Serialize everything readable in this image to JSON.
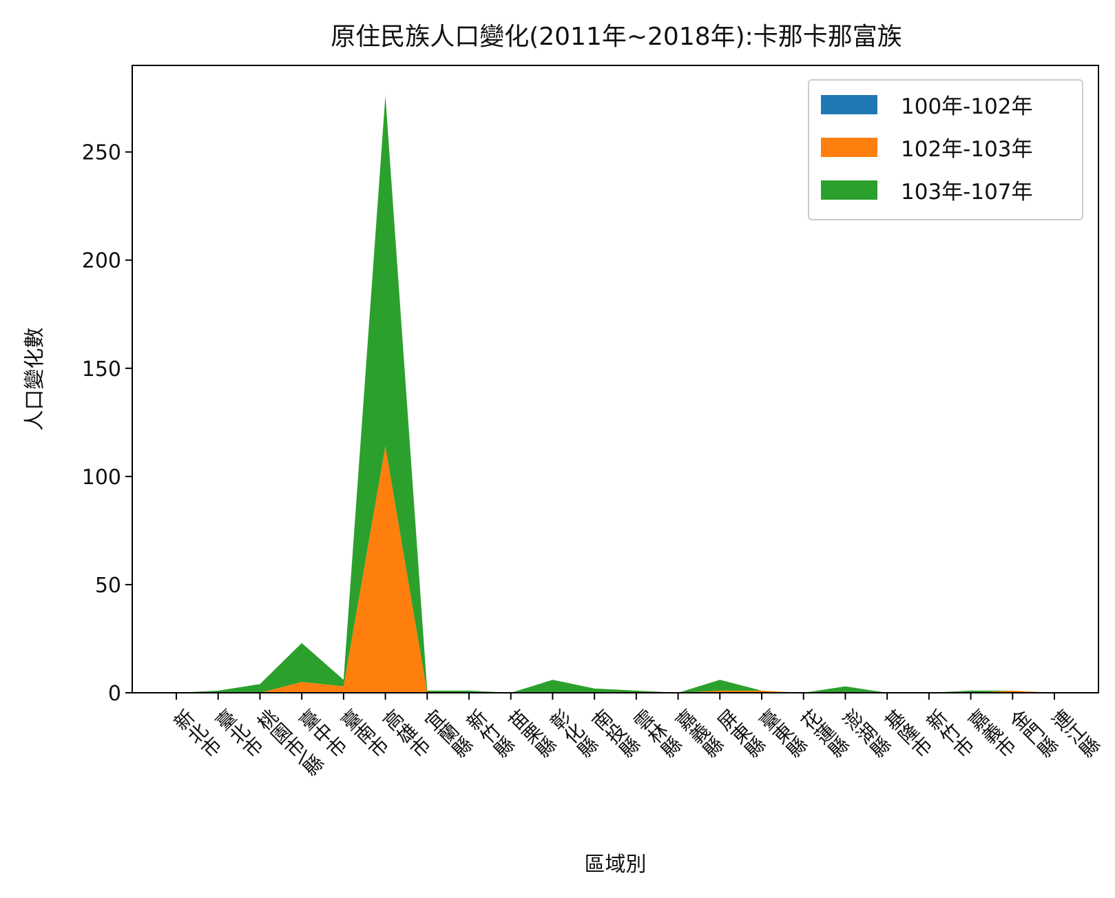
{
  "chart_data": {
    "type": "area",
    "stacked": true,
    "title": "原住民族人口變化(2011年~2018年):卡那卡那富族",
    "xlabel": "區域別",
    "ylabel": "人口變化數",
    "categories": [
      "新北市",
      "臺北市",
      "桃園市\\縣",
      "臺中市",
      "臺南市",
      "高雄市",
      "宜蘭縣",
      "新竹縣",
      "苗栗縣",
      "彰化縣",
      "南投縣",
      "雲林縣",
      "嘉義縣",
      "屏東縣",
      "臺東縣",
      "花蓮縣",
      "澎湖縣",
      "基隆市",
      "新竹市",
      "嘉義市",
      "金門縣",
      "連江縣"
    ],
    "series": [
      {
        "name": "100年-102年",
        "color": "#1f77b4",
        "values": [
          0,
          0,
          0,
          0,
          0,
          0,
          0,
          0,
          0,
          0,
          0,
          0,
          0,
          0,
          0,
          0,
          0,
          0,
          0,
          0,
          0,
          0
        ]
      },
      {
        "name": "102年-103年",
        "color": "#ff7f0e",
        "values": [
          0,
          0,
          0,
          5,
          3,
          114,
          0,
          0,
          0,
          0,
          0,
          0,
          0,
          1,
          1,
          0,
          0,
          0,
          0,
          0,
          1,
          0
        ]
      },
      {
        "name": "103年-107年",
        "color": "#2ca02c",
        "values": [
          0,
          1,
          4,
          18,
          3,
          162,
          1,
          1,
          0,
          6,
          2,
          1,
          0,
          5,
          0,
          0,
          3,
          0,
          0,
          1,
          0,
          0
        ]
      }
    ],
    "y_ticks": [
      0,
      50,
      100,
      150,
      200,
      250
    ],
    "ylim": [
      0,
      290
    ],
    "grid": false,
    "legend_position": "top-right"
  }
}
